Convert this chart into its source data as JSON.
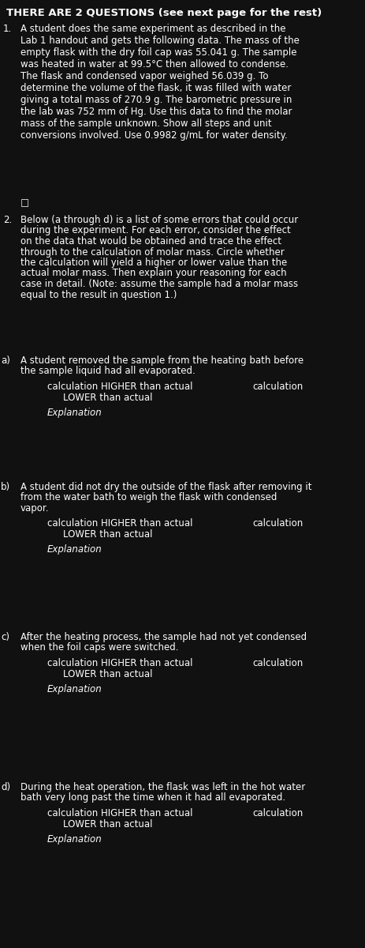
{
  "bg_color": "#111111",
  "text_color": "#ffffff",
  "figsize": [
    4.64,
    12.0
  ],
  "dpi": 100,
  "title": "THERE ARE 2 QUESTIONS (see next page for the rest)",
  "q1_number": "1.",
  "q1_text": "A student does the same experiment as described in the\nLab 1 handout and gets the following data. The mass of the\nempty flask with the dry foil cap was 55.041 g. The sample\nwas heated in water at 99.5°C then allowed to condense.\nThe flask and condensed vapor weighed 56.039 g. To\ndetermine the volume of the flask, it was filled with water\ngiving a total mass of 270.9 g. The barometric pressure in\nthe lab was 752 mm of Hg. Use this data to find the molar\nmass of the sample unknown. Show all steps and unit\nconversions involved. Use 0.9982 g/mL for water density.",
  "checkbox_char": "□",
  "q2_number": "2.",
  "q2_text": "Below (a through d) is a list of some errors that could occur\nduring the experiment. For each error, consider the effect\non the data that would be obtained and trace the effect\nthrough to the calculation of molar mass. Circle whether\nthe calculation will yield a higher or lower value than the\nactual molar mass. Then explain your reasoning for each\ncase in detail. (Note: assume the sample had a molar mass\nequal to the result in question 1.)",
  "q2_circle_word": "Circle",
  "q2_explain_phrase": "explain your reasoning",
  "sections": [
    {
      "letter": "a",
      "scenario": "A student removed the sample from the heating bath before\nthe sample liquid had all evaporated.",
      "higher": "calculation HIGHER than actual",
      "lower": "LOWER than actual",
      "calc_right": "calculation",
      "explanation": "Explanation"
    },
    {
      "letter": "b",
      "scenario": "A student did not dry the outside of the flask after removing it\nfrom the water bath to weigh the flask with condensed\nvapor.",
      "higher": "calculation HIGHER than actual",
      "lower": "LOWER than actual",
      "calc_right": "calculation",
      "explanation": "Explanation"
    },
    {
      "letter": "c",
      "scenario": "After the heating process, the sample had not yet condensed\nwhen the foil caps were switched.",
      "higher": "calculation HIGHER than actual",
      "lower": "LOWER than actual",
      "calc_right": "calculation",
      "explanation": "Explanation"
    },
    {
      "letter": "d",
      "scenario": "During the heat operation, the flask was left in the hot water\nbath very long past the time when it had all evaporated.",
      "higher": "calculation HIGHER than actual",
      "lower": "LOWER than actual",
      "calc_right": "calculation",
      "explanation": "Explanation"
    }
  ],
  "font_size_title": 9.5,
  "font_size_body": 8.5,
  "font_size_small": 8.0
}
